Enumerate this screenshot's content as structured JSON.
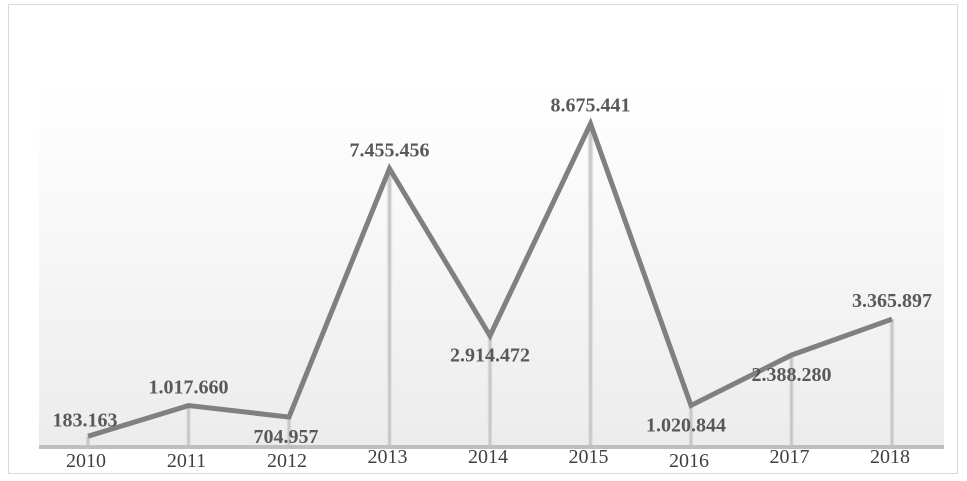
{
  "chart_data": {
    "type": "line",
    "categories": [
      "2010",
      "2011",
      "2012",
      "2013",
      "2014",
      "2015",
      "2016",
      "2017",
      "2018"
    ],
    "values": [
      183163,
      1017660,
      704957,
      7455456,
      2914472,
      8675441,
      1020844,
      2388280,
      3365897
    ],
    "data_labels": [
      "183.163",
      "1.017.660",
      "704.957",
      "7.455.456",
      "2.914.472",
      "8.675.441",
      "1.020.844",
      "2.388.280",
      "3.365.897"
    ],
    "title": "",
    "xlabel": "",
    "ylabel": "",
    "ylim": [
      0,
      10000000
    ],
    "grid": false,
    "legend": "none",
    "line_color": "#808080",
    "drop_line_color": "#d9d9d9"
  }
}
